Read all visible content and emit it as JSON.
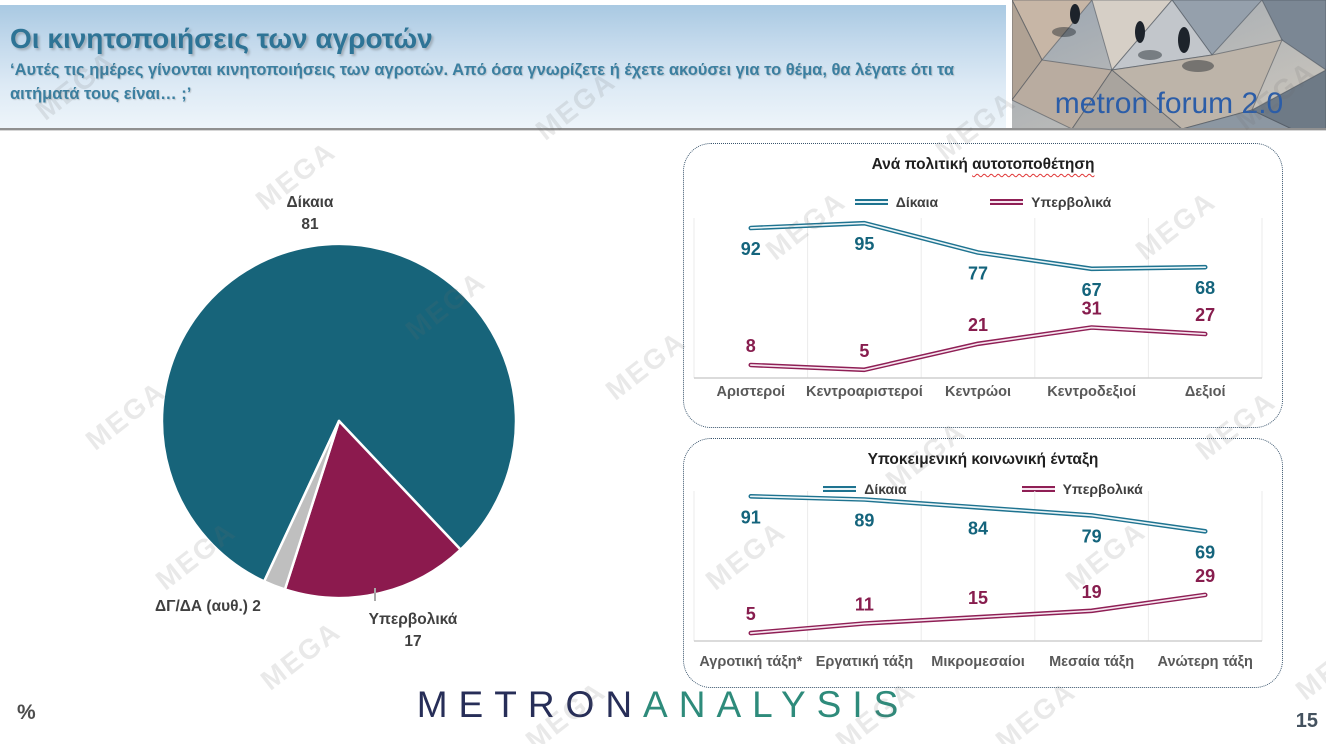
{
  "header": {
    "title": "Οι κινητοποιήσεις των αγροτών",
    "subtitle": "‘Αυτές τις ημέρες γίνονται κινητοποιήσεις των αγροτών. Από όσα γνωρίζετε ή έχετε ακούσει για το θέμα, θα λέγατε ότι τα αιτήματά τους είναι… ;’",
    "logo_text": "metron forum 2.0"
  },
  "watermark": {
    "text": "MEGA"
  },
  "footer": {
    "unit": "%",
    "page": "15",
    "brand_metron": "METRON",
    "brand_analysis": "ANALYSIS"
  },
  "chart_data": [
    {
      "id": "approval-pie",
      "type": "pie",
      "units": "%",
      "labels": [
        "Δίκαια",
        "Υπερβολικά",
        "ΔΓ/ΔΑ (αυθ.)"
      ],
      "values": [
        81,
        17,
        2
      ],
      "colors": [
        "#17647A",
        "#8C1A4E",
        "#BFBFBF"
      ],
      "start_angle_deg": 205,
      "callouts": {
        "dikaia_label": "Δίκαια",
        "dikaia_value": "81",
        "yper_label": "Υπερβολικά",
        "yper_value": "17",
        "dgda_label": "ΔΓ/ΔΑ (αυθ.) 2"
      }
    },
    {
      "id": "political",
      "type": "line",
      "title_prefix": "Ανά πολιτική ",
      "title_marked": "αυτοτοποθέτηση",
      "categories": [
        "Αριστεροί",
        "Κεντροαριστεροί",
        "Κεντρώοι",
        "Κεντροδεξιοί",
        "Δεξιοί"
      ],
      "series": [
        {
          "name": "Δίκαια",
          "color": "#1E7390",
          "inner": "#EAF4F7",
          "label_color": "#14647C",
          "values": [
            92,
            95,
            77,
            67,
            68
          ]
        },
        {
          "name": "Υπερβολικά",
          "color": "#8F1F55",
          "inner": "#F6E5EF",
          "label_color": "#871D4E",
          "values": [
            8,
            5,
            21,
            31,
            27
          ]
        }
      ],
      "ylim": [
        0,
        100
      ],
      "legend": "top",
      "grid": "vertical"
    },
    {
      "id": "social",
      "type": "line",
      "title_prefix": "Υποκειμενική κοινωνική ένταξη",
      "title_marked": "",
      "categories": [
        "Αγροτική τάξη*",
        "Εργατική τάξη",
        "Μικρομεσαίοι",
        "Μεσαία τάξη",
        "Ανώτερη τάξη"
      ],
      "series": [
        {
          "name": "Δίκαια",
          "color": "#1E7390",
          "inner": "#EAF4F7",
          "label_color": "#14647C",
          "values": [
            91,
            89,
            84,
            79,
            69
          ]
        },
        {
          "name": "Υπερβολικά",
          "color": "#8F1F55",
          "inner": "#F6E5EF",
          "label_color": "#871D4E",
          "values": [
            5,
            11,
            15,
            19,
            29
          ]
        }
      ],
      "ylim": [
        0,
        100
      ],
      "legend": "top",
      "grid": "vertical"
    }
  ]
}
